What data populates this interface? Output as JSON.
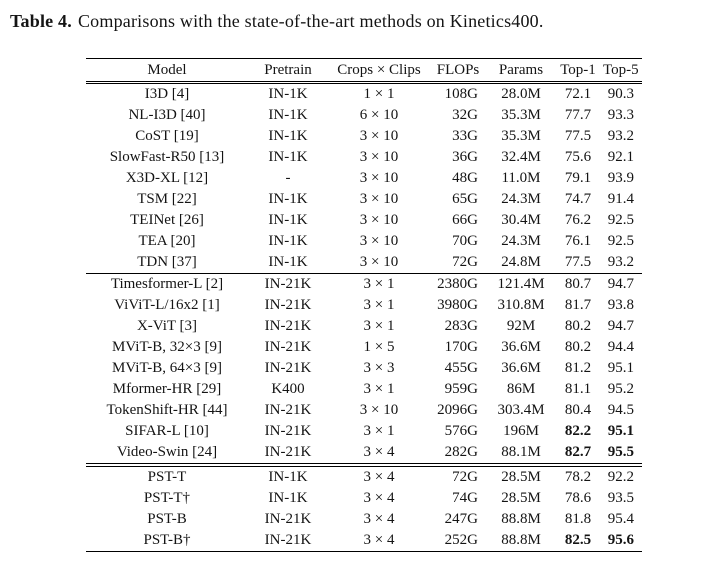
{
  "caption": {
    "label": "Table 4.",
    "text": "Comparisons with the state-of-the-art methods on Kinetics400."
  },
  "table": {
    "headers": [
      "Model",
      "Pretrain",
      "Crops × Clips",
      "FLOPs",
      "Params",
      "Top-1",
      "Top-5"
    ],
    "groups": [
      {
        "name": "cnn-methods",
        "rows": [
          {
            "model": "I3D [4]",
            "pretrain": "IN-1K",
            "crops_clips": "1 × 1",
            "flops": "108G",
            "params": "28.0M",
            "top1": "72.1",
            "top5": "90.3",
            "highlight": false
          },
          {
            "model": "NL-I3D [40]",
            "pretrain": "IN-1K",
            "crops_clips": "6 × 10",
            "flops": "32G",
            "params": "35.3M",
            "top1": "77.7",
            "top5": "93.3",
            "highlight": false
          },
          {
            "model": "CoST [19]",
            "pretrain": "IN-1K",
            "crops_clips": "3 × 10",
            "flops": "33G",
            "params": "35.3M",
            "top1": "77.5",
            "top5": "93.2",
            "highlight": false
          },
          {
            "model": "SlowFast-R50 [13]",
            "pretrain": "IN-1K",
            "crops_clips": "3 × 10",
            "flops": "36G",
            "params": "32.4M",
            "top1": "75.6",
            "top5": "92.1",
            "highlight": false
          },
          {
            "model": "X3D-XL [12]",
            "pretrain": "-",
            "crops_clips": "3 × 10",
            "flops": "48G",
            "params": "11.0M",
            "top1": "79.1",
            "top5": "93.9",
            "highlight": false
          },
          {
            "model": "TSM [22]",
            "pretrain": "IN-1K",
            "crops_clips": "3 × 10",
            "flops": "65G",
            "params": "24.3M",
            "top1": "74.7",
            "top5": "91.4",
            "highlight": false
          },
          {
            "model": "TEINet [26]",
            "pretrain": "IN-1K",
            "crops_clips": "3 × 10",
            "flops": "66G",
            "params": "30.4M",
            "top1": "76.2",
            "top5": "92.5",
            "highlight": false
          },
          {
            "model": "TEA [20]",
            "pretrain": "IN-1K",
            "crops_clips": "3 × 10",
            "flops": "70G",
            "params": "24.3M",
            "top1": "76.1",
            "top5": "92.5",
            "highlight": false
          },
          {
            "model": "TDN [37]",
            "pretrain": "IN-1K",
            "crops_clips": "3 × 10",
            "flops": "72G",
            "params": "24.8M",
            "top1": "77.5",
            "top5": "93.2",
            "highlight": false
          }
        ]
      },
      {
        "name": "transformer-methods",
        "rows": [
          {
            "model": "Timesformer-L [2]",
            "pretrain": "IN-21K",
            "crops_clips": "3 × 1",
            "flops": "2380G",
            "params": "121.4M",
            "top1": "80.7",
            "top5": "94.7",
            "highlight": false
          },
          {
            "model": "ViViT-L/16x2 [1]",
            "pretrain": "IN-21K",
            "crops_clips": "3 × 1",
            "flops": "3980G",
            "params": "310.8M",
            "top1": "81.7",
            "top5": "93.8",
            "highlight": false
          },
          {
            "model": "X-ViT [3]",
            "pretrain": "IN-21K",
            "crops_clips": "3 × 1",
            "flops": "283G",
            "params": "92M",
            "top1": "80.2",
            "top5": "94.7",
            "highlight": false
          },
          {
            "model": "MViT-B, 32×3 [9]",
            "pretrain": "IN-21K",
            "crops_clips": "1 × 5",
            "flops": "170G",
            "params": "36.6M",
            "top1": "80.2",
            "top5": "94.4",
            "highlight": false
          },
          {
            "model": "MViT-B, 64×3 [9]",
            "pretrain": "IN-21K",
            "crops_clips": "3 × 3",
            "flops": "455G",
            "params": "36.6M",
            "top1": "81.2",
            "top5": "95.1",
            "highlight": false
          },
          {
            "model": "Mformer-HR [29]",
            "pretrain": "K400",
            "crops_clips": "3 × 1",
            "flops": "959G",
            "params": "86M",
            "top1": "81.1",
            "top5": "95.2",
            "highlight": false
          },
          {
            "model": "TokenShift-HR [44]",
            "pretrain": "IN-21K",
            "crops_clips": "3 × 10",
            "flops": "2096G",
            "params": "303.4M",
            "top1": "80.4",
            "top5": "94.5",
            "highlight": false
          },
          {
            "model": "SIFAR-L [10]",
            "pretrain": "IN-21K",
            "crops_clips": "3 × 1",
            "flops": "576G",
            "params": "196M",
            "top1": "82.2",
            "top5": "95.1",
            "highlight": true
          },
          {
            "model": "Video-Swin [24]",
            "pretrain": "IN-21K",
            "crops_clips": "3 × 4",
            "flops": "282G",
            "params": "88.1M",
            "top1": "82.7",
            "top5": "95.5",
            "highlight": true
          }
        ]
      },
      {
        "name": "pst-methods",
        "rows": [
          {
            "model": "PST-T",
            "pretrain": "IN-1K",
            "crops_clips": "3 × 4",
            "flops": "72G",
            "params": "28.5M",
            "top1": "78.2",
            "top5": "92.2",
            "highlight": false
          },
          {
            "model": "PST-T†",
            "pretrain": "IN-1K",
            "crops_clips": "3 × 4",
            "flops": "74G",
            "params": "28.5M",
            "top1": "78.6",
            "top5": "93.5",
            "highlight": false
          },
          {
            "model": "PST-B",
            "pretrain": "IN-21K",
            "crops_clips": "3 × 4",
            "flops": "247G",
            "params": "88.8M",
            "top1": "81.8",
            "top5": "95.4",
            "highlight": false
          },
          {
            "model": "PST-B†",
            "pretrain": "IN-21K",
            "crops_clips": "3 × 4",
            "flops": "252G",
            "params": "88.8M",
            "top1": "82.5",
            "top5": "95.6",
            "highlight": true
          }
        ]
      }
    ]
  }
}
